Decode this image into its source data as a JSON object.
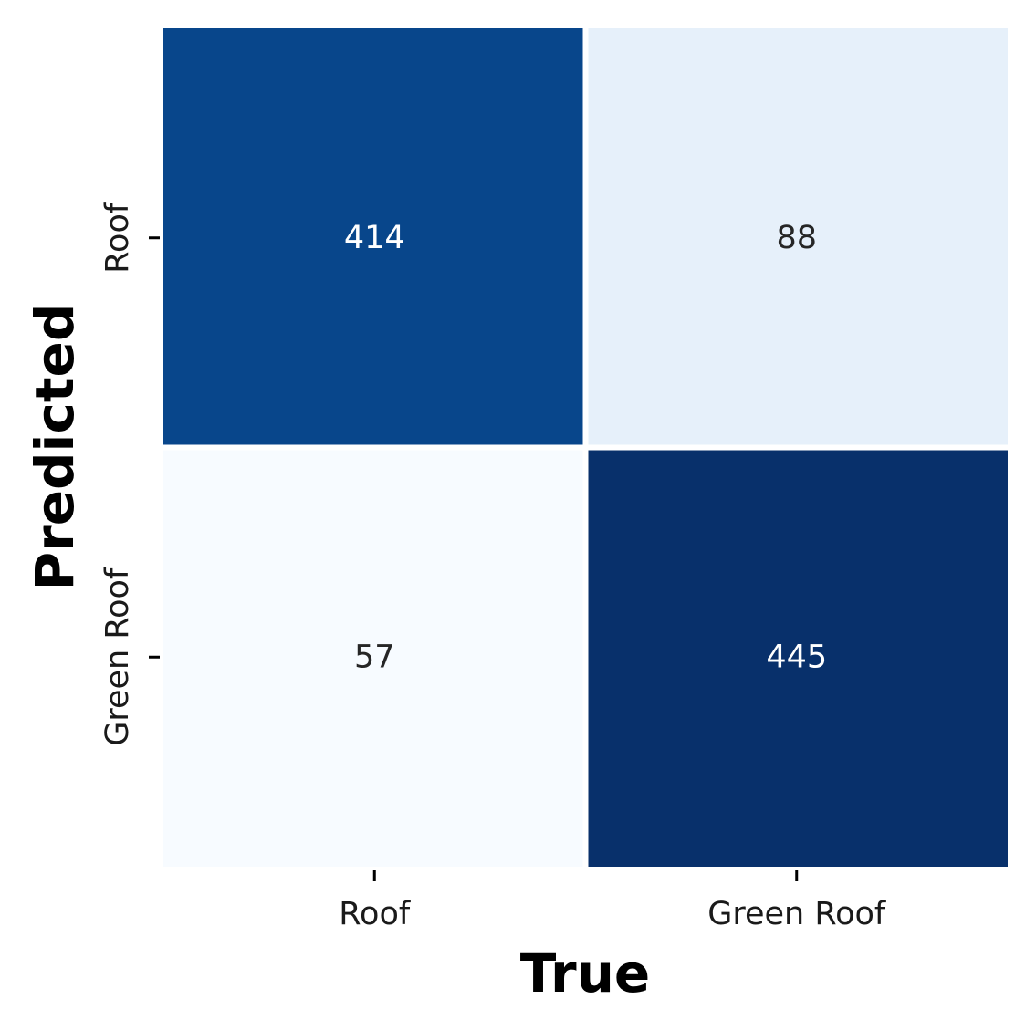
{
  "chart_data": {
    "type": "heatmap",
    "title": "",
    "xlabel": "True",
    "ylabel": "Predicted",
    "x_categories": [
      "Roof",
      "Green Roof"
    ],
    "y_categories": [
      "Roof",
      "Green Roof"
    ],
    "values": [
      [
        414,
        88
      ],
      [
        57,
        445
      ]
    ],
    "cell_colors": [
      [
        "#08468b",
        "#e6f0fa"
      ],
      [
        "#f7fbff",
        "#08306b"
      ]
    ],
    "text_colors": [
      [
        "#ffffff",
        "#262626"
      ],
      [
        "#262626",
        "#ffffff"
      ]
    ],
    "colormap": "Blues",
    "colorbar": false,
    "grid": false
  }
}
